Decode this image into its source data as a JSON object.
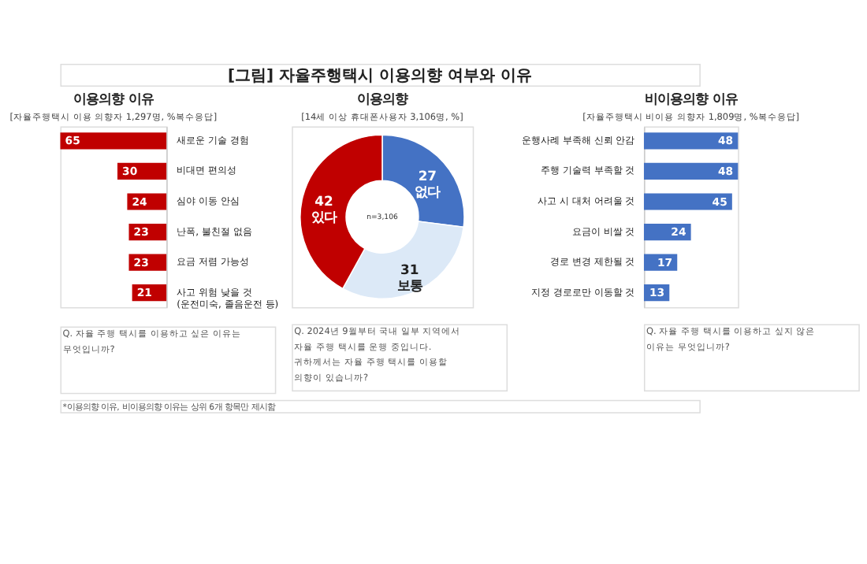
{
  "chart_data": [
    {
      "type": "other",
      "title": "[그림] 자율주행택시 이용의향 여부와 이유",
      "annotations": [
        "*이용의향 이유, 비이용의향 이유는 상위 6개 항목만 제시함"
      ]
    },
    {
      "type": "bar",
      "orientation": "horizontal",
      "title": "이용의향 이유",
      "subtitle": "[자율주행택시 이용 의향자 1,297명, %복수응답]",
      "categories": [
        "새로운 기술 경험",
        "비대면 편의성",
        "심야 이동 안심",
        "난폭, 불친절 없음",
        "요금 저렴 가능성",
        "사고 위험 낮을 것\n(운전미숙, 졸음운전 등)"
      ],
      "values": [
        65,
        30,
        24,
        23,
        23,
        21
      ],
      "color": "#c00000",
      "xlim": [
        65,
        0
      ],
      "tick_labels": "y",
      "data_labels": true,
      "annotations": [
        "Q. 자율 주행 택시를 이용하고 싶은 이유는\n무엇입니까?"
      ]
    },
    {
      "type": "donut",
      "title": "이용의향",
      "subtitle": "[14세 이상 휴대폰사용자 3,106명, %]",
      "categories": [
        "없다",
        "보통",
        "있다"
      ],
      "values": [
        27,
        31,
        42
      ],
      "colors": [
        "#4472c4",
        "#dce9f7",
        "#c00000"
      ],
      "data_labels": true,
      "annotations": [
        "n=3,106",
        "Q. 2024년 9월부터 국내 일부 지역에서\n자율 주행 택시를 운행 중입니다.\n귀하께서는 자율 주행 택시를 이용할\n의향이 있습니까?"
      ]
    },
    {
      "type": "bar",
      "orientation": "horizontal",
      "title": "비이용의향 이유",
      "subtitle": "[자율주행택시 비이용 의향자 1,809명, %복수응답]",
      "categories": [
        "운행사례 부족해 신뢰 안감",
        "주행 기술력 부족할 것",
        "사고 시 대처 어려울 것",
        "요금이 비쌀 것",
        "경로 변경 제한될 것",
        "지정 경로로만 이동할 것"
      ],
      "values": [
        48,
        48,
        45,
        24,
        17,
        13
      ],
      "color": "#4472c4",
      "xlim": [
        0,
        48
      ],
      "tick_labels": "y",
      "data_labels": true,
      "annotations": [
        "Q. 자율 주행 택시를 이용하고 싶지 않은\n이유는 무엇입니까?"
      ]
    }
  ]
}
